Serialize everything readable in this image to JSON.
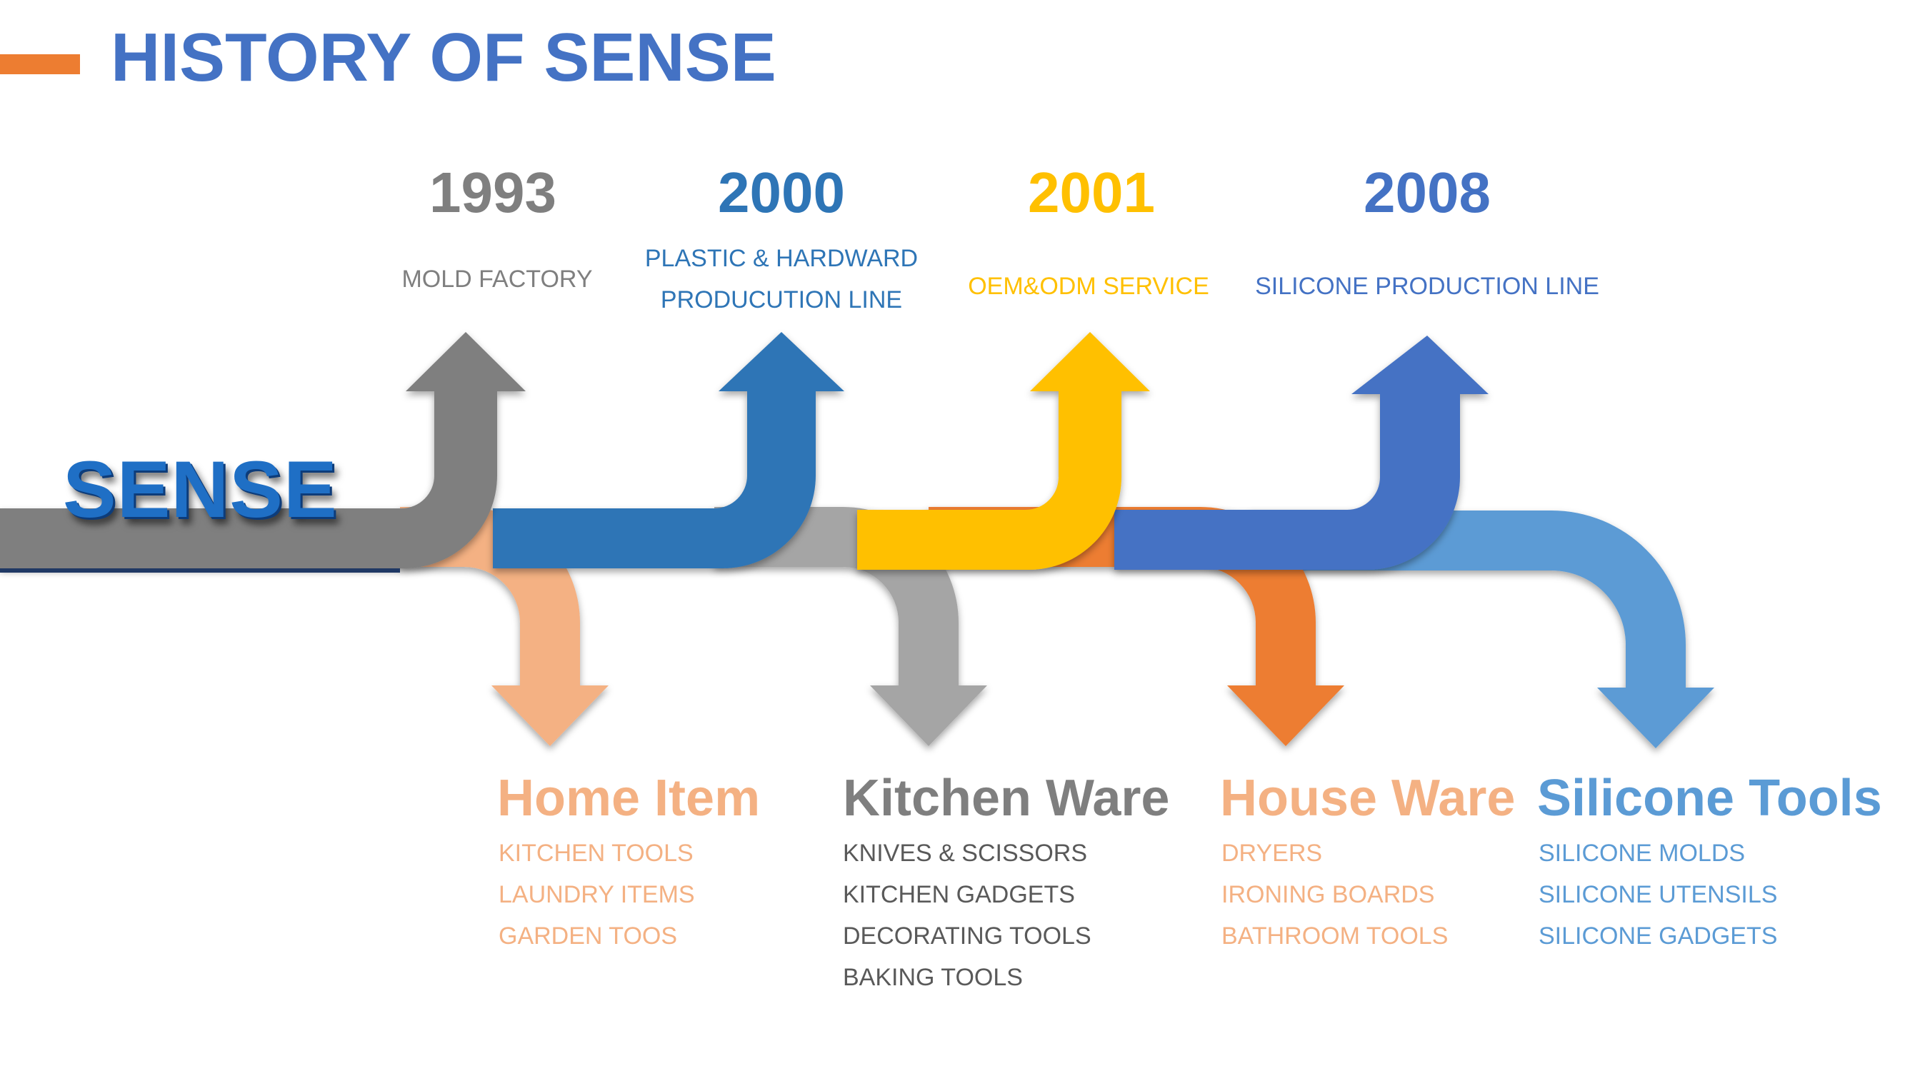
{
  "title": "HISTORY OF SENSE",
  "brand": "SENSE",
  "colors": {
    "gray_dark": "#7F7F7F",
    "blue_dark": "#2E75B6",
    "yellow": "#FFC000",
    "blue_mid": "#4472C4",
    "peach": "#F4B183",
    "gray_light": "#A5A5A5",
    "orange": "#ED7D31",
    "blue_light": "#5B9BD5"
  },
  "milestones": [
    {
      "year": "1993",
      "lines": [
        "MOLD FACTORY"
      ],
      "color": "#7F7F7F"
    },
    {
      "year": "2000",
      "lines": [
        "PLASTIC & HARDWARD",
        "PRODUCUTION LINE"
      ],
      "color": "#2E75B6"
    },
    {
      "year": "2001",
      "lines": [
        "OEM&ODM SERVICE"
      ],
      "color": "#FFC000"
    },
    {
      "year": "2008",
      "lines": [
        "SILICONE PRODUCTION LINE"
      ],
      "color": "#4472C4"
    }
  ],
  "categories": [
    {
      "title": "Home Item",
      "items": [
        "KITCHEN TOOLS",
        "LAUNDRY ITEMS",
        "GARDEN TOOS"
      ],
      "color": "#F4B183"
    },
    {
      "title": "Kitchen Ware",
      "items": [
        "KNIVES & SCISSORS",
        "KITCHEN GADGETS",
        "DECORATING TOOLS",
        "BAKING TOOLS"
      ],
      "color": "#7F7F7F",
      "item_color": "#595959"
    },
    {
      "title": "House Ware",
      "items": [
        "DRYERS",
        "IRONING BOARDS",
        "BATHROOM TOOLS"
      ],
      "color": "#F4B183"
    },
    {
      "title": "Silicone Tools",
      "items": [
        "SILICONE MOLDS",
        "SILICONE UTENSILS",
        "SILICONE GADGETS"
      ],
      "color": "#5B9BD5"
    }
  ]
}
